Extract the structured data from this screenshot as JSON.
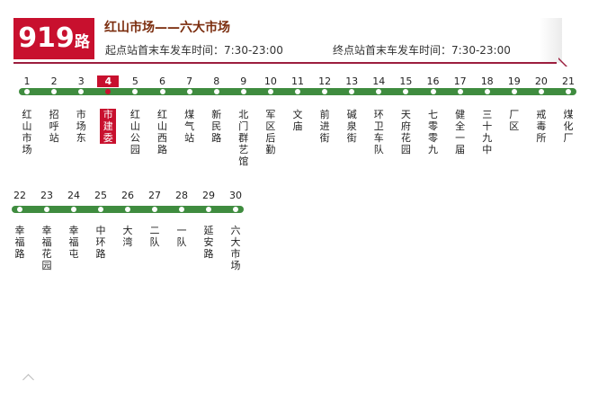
{
  "header": {
    "route_number": "919",
    "route_suffix": "路",
    "title": "红山市场——六大市场",
    "start_time": "起点站首末车发车时间：7:30-23:00",
    "end_time": "终点站首末车发车时间：7:30-23:00"
  },
  "colors": {
    "brand": "#c8102e",
    "route": "#3f8c3f",
    "rule": "#9c1e3e",
    "title": "#7b2d0e"
  },
  "current_stop": 4,
  "rows": [
    {
      "stops": [
        {
          "num": "1",
          "name": "红山市场"
        },
        {
          "num": "2",
          "name": "招呼站"
        },
        {
          "num": "3",
          "name": "市场东"
        },
        {
          "num": "4",
          "name": "市建委"
        },
        {
          "num": "5",
          "name": "红山公园"
        },
        {
          "num": "6",
          "name": "红山西路"
        },
        {
          "num": "7",
          "name": "煤气站"
        },
        {
          "num": "8",
          "name": "新民路"
        },
        {
          "num": "9",
          "name": "北门群艺馆"
        },
        {
          "num": "10",
          "name": "军区后勤"
        },
        {
          "num": "11",
          "name": "文庙"
        },
        {
          "num": "12",
          "name": "前进街"
        },
        {
          "num": "13",
          "name": "碱泉街"
        },
        {
          "num": "14",
          "name": "环卫车队"
        },
        {
          "num": "15",
          "name": "天府花园"
        },
        {
          "num": "16",
          "name": "七零零九"
        },
        {
          "num": "17",
          "name": "健全一届"
        },
        {
          "num": "18",
          "name": "三十九中"
        },
        {
          "num": "19",
          "name": "厂区"
        },
        {
          "num": "20",
          "name": "戒毒所"
        },
        {
          "num": "21",
          "name": "煤化厂"
        }
      ]
    },
    {
      "stops": [
        {
          "num": "22",
          "name": "幸福路"
        },
        {
          "num": "23",
          "name": "幸福花园"
        },
        {
          "num": "24",
          "name": "幸福屯"
        },
        {
          "num": "25",
          "name": "中环路"
        },
        {
          "num": "26",
          "name": "大湾"
        },
        {
          "num": "27",
          "name": "二队"
        },
        {
          "num": "28",
          "name": "一队"
        },
        {
          "num": "29",
          "name": "延安路"
        },
        {
          "num": "30",
          "name": "六大市场"
        }
      ]
    }
  ]
}
